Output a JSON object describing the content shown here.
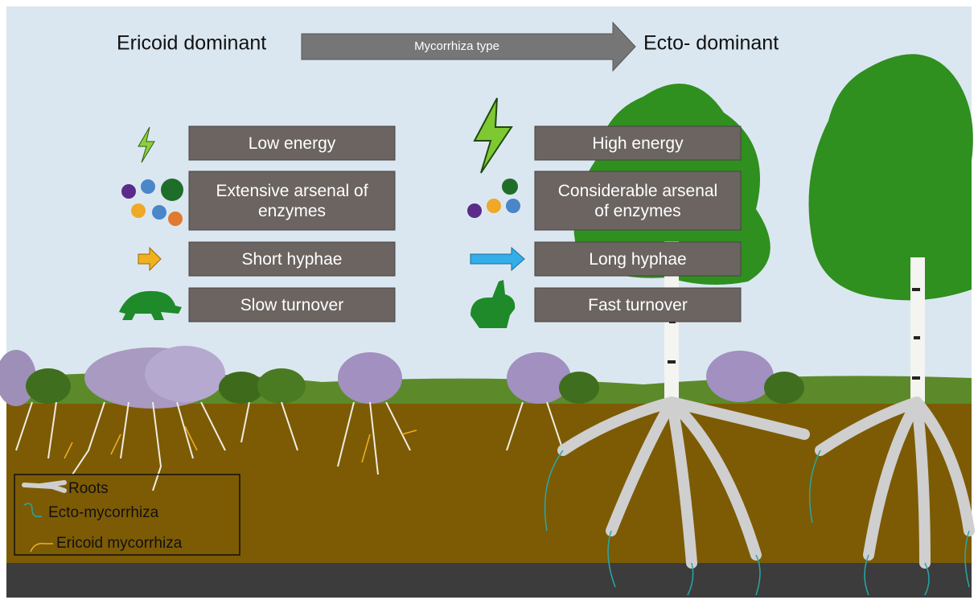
{
  "header": {
    "left": "Ericoid dominant",
    "arrow": "Mycorrhiza type",
    "right": "Ecto- dominant"
  },
  "ericoid_traits": [
    "Low energy",
    "Extensive arsenal of enzymes",
    "Short hyphae",
    "Slow turnover"
  ],
  "ecto_traits": [
    "High energy",
    "Considerable arsenal of enzymes",
    "Long hyphae",
    "Fast turnover"
  ],
  "legend": [
    "Roots",
    "Ecto-mycorrhiza",
    "Ericoid mycorrhiza"
  ]
}
